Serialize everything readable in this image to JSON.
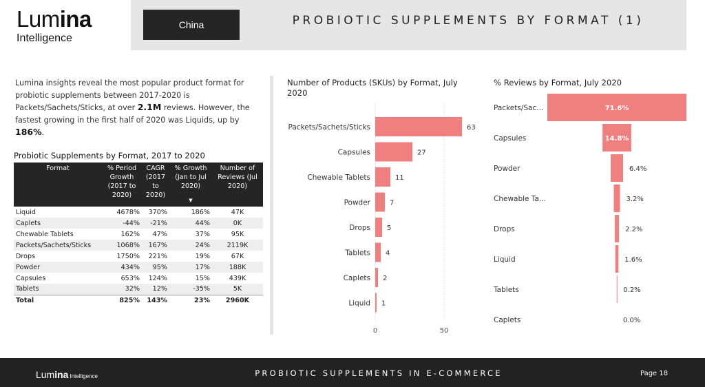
{
  "brand": {
    "logo_light": "Lum",
    "logo_bold": "ina",
    "logo_sub": "Intelligence"
  },
  "header": {
    "country": "China",
    "title": "PROBIOTIC SUPPLEMENTS BY FORMAT (1)"
  },
  "insight": {
    "part1": "Lumina insights reveal the most popular product format for probiotic supplements between 2017-2020 is Packets/Sachets/Sticks, at over ",
    "bold1": "2.1M",
    "part2": " reviews.  However, the fastest growing in the first half of 2020 was Liquids, up by ",
    "bold2": "186%",
    "part3": "."
  },
  "table": {
    "title": "Probiotic Supplements by Format, 2017 to 2020",
    "headers": [
      "Format",
      "% Period Growth (2017 to 2020)",
      "CAGR (2017 to 2020)",
      "% Growth (Jan to Jul 2020)",
      "Number of Reviews (Jul 2020)"
    ],
    "rows": [
      [
        "Liquid",
        "4678%",
        "370%",
        "186%",
        "47K"
      ],
      [
        "Caplets",
        "-44%",
        "-21%",
        "44%",
        "0K"
      ],
      [
        "Chewable Tablets",
        "162%",
        "47%",
        "37%",
        "95K"
      ],
      [
        "Packets/Sachets/Sticks",
        "1068%",
        "167%",
        "24%",
        "2119K"
      ],
      [
        "Drops",
        "1750%",
        "221%",
        "19%",
        "67K"
      ],
      [
        "Powder",
        "434%",
        "95%",
        "17%",
        "188K"
      ],
      [
        "Capsules",
        "653%",
        "124%",
        "15%",
        "439K"
      ],
      [
        "Tablets",
        "32%",
        "12%",
        "-35%",
        "5K"
      ]
    ],
    "total": [
      "Total",
      "825%",
      "143%",
      "23%",
      "2960K"
    ]
  },
  "chart_data": [
    {
      "type": "bar",
      "orientation": "horizontal",
      "title": "Number of Products (SKUs) by Format, July 2020",
      "categories": [
        "Packets/Sachets/Sticks",
        "Capsules",
        "Chewable Tablets",
        "Powder",
        "Drops",
        "Tablets",
        "Caplets",
        "Liquid"
      ],
      "values": [
        63,
        27,
        11,
        7,
        5,
        4,
        2,
        1
      ],
      "xlim": [
        0,
        70
      ],
      "xticks": [
        0,
        50
      ],
      "color": "#f08080"
    },
    {
      "type": "bar",
      "orientation": "horizontal-funnel",
      "title": "% Reviews by Format, July 2020",
      "categories": [
        "Packets/Sac...",
        "Capsules",
        "Powder",
        "Chewable Ta...",
        "Drops",
        "Liquid",
        "Tablets",
        "Caplets"
      ],
      "values": [
        71.6,
        14.8,
        6.4,
        3.2,
        2.2,
        1.6,
        0.2,
        0.0
      ],
      "labels": [
        "71.6%",
        "14.8%",
        "6.4%",
        "3.2%",
        "2.2%",
        "1.6%",
        "0.2%",
        "0.0%"
      ],
      "color": "#f08080"
    }
  ],
  "footer": {
    "logo_light": "Lum",
    "logo_bold": "ina",
    "logo_sub": "Intelligence",
    "title": "PROBIOTIC SUPPLEMENTS IN E-COMMERCE",
    "page": "Page  18"
  }
}
